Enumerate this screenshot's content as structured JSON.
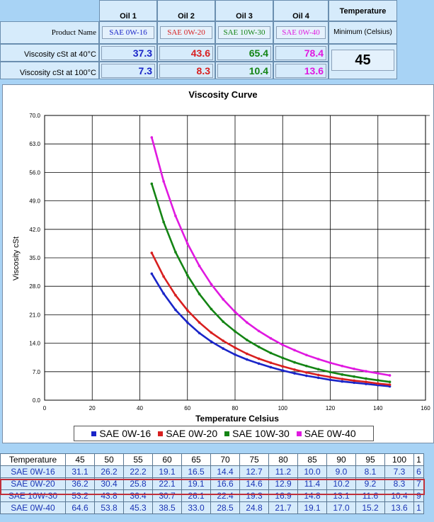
{
  "top": {
    "oil_headers": [
      "Oil 1",
      "Oil 2",
      "Oil 3",
      "Oil 4"
    ],
    "temperature_header": "Temperature",
    "minimum_label": "Minimum (Celsius)",
    "product_name_label": "Product Name",
    "visc40_label": "Viscosity cSt at 40°C",
    "visc100_label": "Viscosity cSt at 100°C",
    "products": [
      "SAE 0W-16",
      "SAE 0W-20",
      "SAE 10W-30",
      "SAE 0W-40"
    ],
    "product_colors": [
      "#1a25c8",
      "#d81f1f",
      "#148414",
      "#e019e0"
    ],
    "visc40": [
      "37.3",
      "43.6",
      "65.4",
      "78.4"
    ],
    "visc100": [
      "7.3",
      "8.3",
      "10.4",
      "13.6"
    ],
    "min_temperature": "45"
  },
  "chart_data": {
    "type": "line",
    "title": "Viscosity Curve",
    "xlabel": "Temperature Celsius",
    "ylabel": "Viscosity cSt",
    "xlim": [
      0,
      160
    ],
    "ylim": [
      0,
      70
    ],
    "x_ticks": [
      "0",
      "20",
      "40",
      "60",
      "80",
      "100",
      "120",
      "140",
      "160"
    ],
    "y_ticks": [
      "0.0",
      "7.0",
      "14.0",
      "21.0",
      "28.0",
      "35.0",
      "42.0",
      "49.0",
      "56.0",
      "63.0",
      "70.0"
    ],
    "grid": true,
    "legend_position": "bottom",
    "x": [
      45,
      50,
      55,
      60,
      65,
      70,
      75,
      80,
      85,
      90,
      95,
      100,
      105,
      110,
      115,
      120,
      125,
      130,
      135,
      140,
      145
    ],
    "series": [
      {
        "name": "SAE 0W-16",
        "color": "#1a25c8",
        "values": [
          31.1,
          26.2,
          22.2,
          19.1,
          16.5,
          14.4,
          12.7,
          11.2,
          10.0,
          9.0,
          8.1,
          7.3,
          6.6,
          6.0,
          5.5,
          5.0,
          4.6,
          4.3,
          4.0,
          3.7,
          3.4
        ]
      },
      {
        "name": "SAE 0W-20",
        "color": "#d81f1f",
        "values": [
          36.2,
          30.4,
          25.8,
          22.1,
          19.1,
          16.6,
          14.6,
          12.9,
          11.4,
          10.2,
          9.2,
          8.3,
          7.5,
          6.8,
          6.2,
          5.7,
          5.2,
          4.8,
          4.5,
          4.1,
          3.8
        ]
      },
      {
        "name": "SAE 10W-30",
        "color": "#148414",
        "values": [
          53.2,
          43.8,
          36.4,
          30.7,
          26.1,
          22.4,
          19.3,
          16.9,
          14.8,
          13.1,
          11.6,
          10.4,
          9.3,
          8.4,
          7.6,
          6.9,
          6.3,
          5.8,
          5.3,
          4.9,
          4.5
        ]
      },
      {
        "name": "SAE 0W-40",
        "color": "#e019e0",
        "values": [
          64.6,
          53.8,
          45.3,
          38.5,
          33.0,
          28.5,
          24.8,
          21.7,
          19.1,
          17.0,
          15.2,
          13.6,
          12.3,
          11.1,
          10.1,
          9.2,
          8.4,
          7.7,
          7.1,
          6.6,
          6.1
        ]
      }
    ]
  },
  "table": {
    "header_label": "Temperature",
    "temps": [
      "45",
      "50",
      "55",
      "60",
      "65",
      "70",
      "75",
      "80",
      "85",
      "90",
      "95",
      "100",
      "1"
    ],
    "rows": [
      {
        "label": "SAE 0W-16",
        "values": [
          "31.1",
          "26.2",
          "22.2",
          "19.1",
          "16.5",
          "14.4",
          "12.7",
          "11.2",
          "10.0",
          "9.0",
          "8.1",
          "7.3",
          "6"
        ]
      },
      {
        "label": "SAE 0W-20",
        "values": [
          "36.2",
          "30.4",
          "25.8",
          "22.1",
          "19.1",
          "16.6",
          "14.6",
          "12.9",
          "11.4",
          "10.2",
          "9.2",
          "8.3",
          "7"
        ]
      },
      {
        "label": "SAE 10W-30",
        "values": [
          "53.2",
          "43.8",
          "36.4",
          "30.7",
          "26.1",
          "22.4",
          "19.3",
          "16.9",
          "14.8",
          "13.1",
          "11.6",
          "10.4",
          "9"
        ]
      },
      {
        "label": "SAE 0W-40",
        "values": [
          "64.6",
          "53.8",
          "45.3",
          "38.5",
          "33.0",
          "28.5",
          "24.8",
          "21.7",
          "19.1",
          "17.0",
          "15.2",
          "13.6",
          "1"
        ]
      }
    ]
  }
}
